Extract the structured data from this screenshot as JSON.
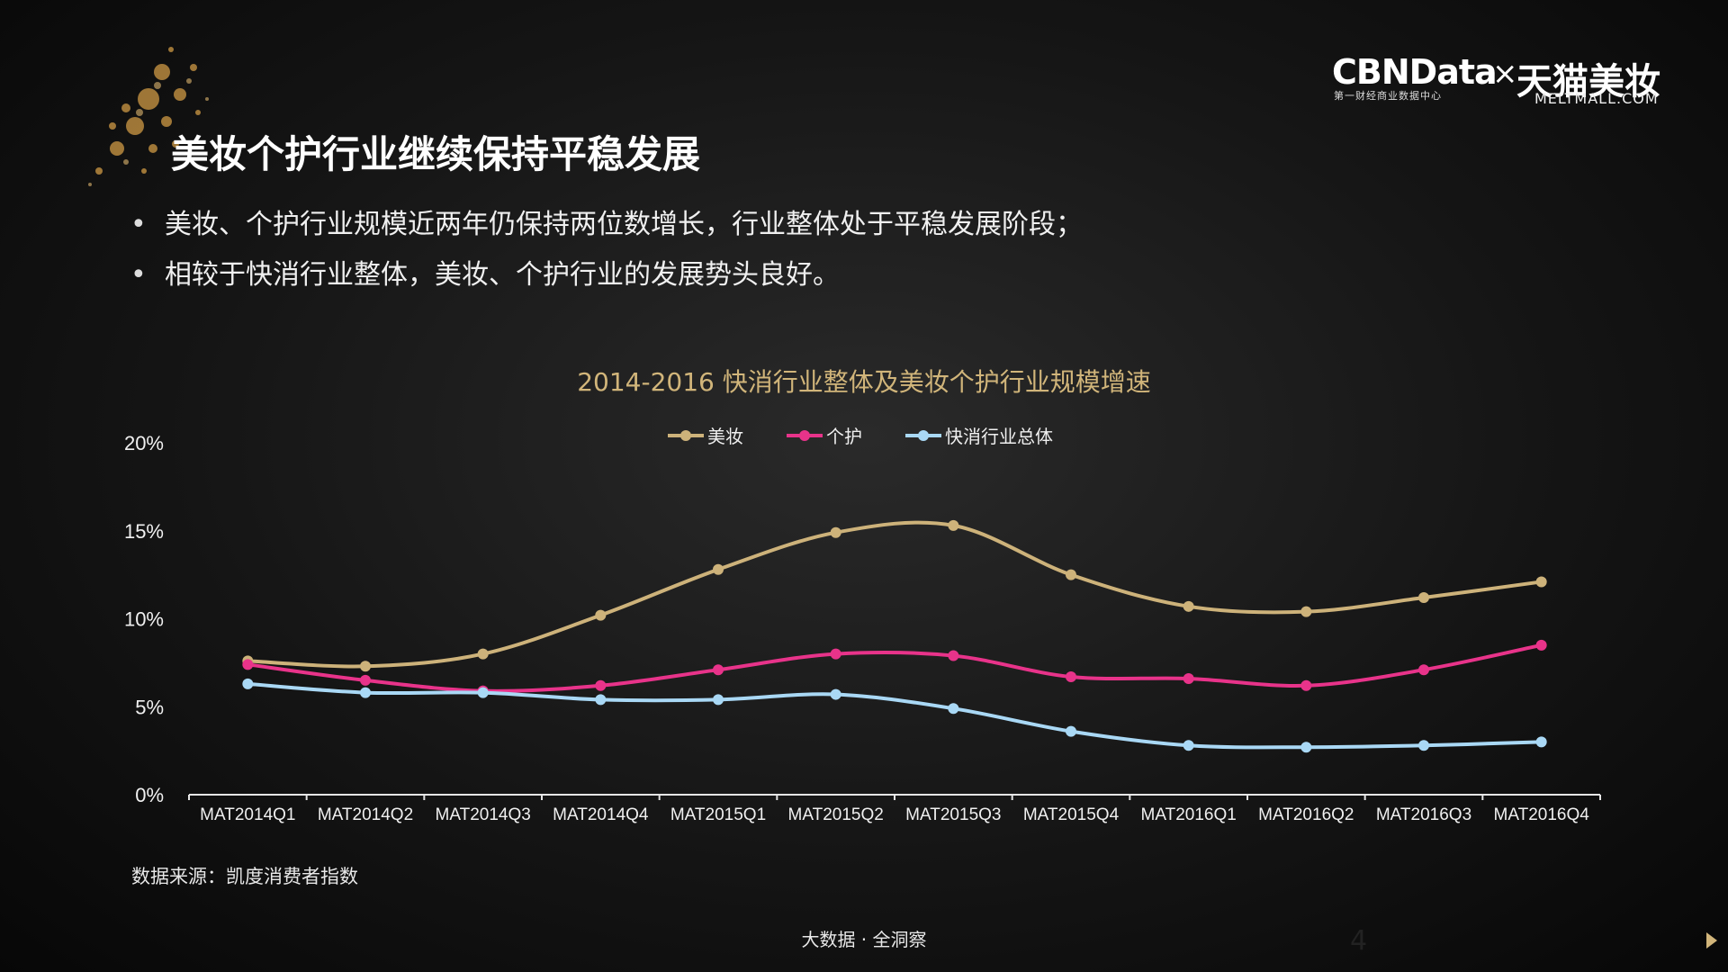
{
  "logo": {
    "cbn": "CBNData",
    "cbn_sub": "第一财经商业数据中心",
    "x": "×",
    "tmall": "天猫美妆",
    "tmall_sub": "MELTMALL.COM"
  },
  "title": "美妆个护行业继续保持平稳发展",
  "bullets": [
    "美妆、个护行业规模近两年仍保持两位数增长，行业整体处于平稳发展阶段；",
    "相较于快消行业整体，美妆、个护行业的发展势头良好。"
  ],
  "source": "数据来源：凯度消费者指数",
  "footer": "大数据 · 全洞察",
  "page_number": "4",
  "chart_data": {
    "type": "line",
    "title": "2014-2016 快消行业整体及美妆个护行业规模增速",
    "categories": [
      "MAT2014Q1",
      "MAT2014Q2",
      "MAT2014Q3",
      "MAT2014Q4",
      "MAT2015Q1",
      "MAT2015Q2",
      "MAT2015Q3",
      "MAT2015Q4",
      "MAT2016Q1",
      "MAT2016Q2",
      "MAT2016Q3",
      "MAT2016Q4"
    ],
    "ylim": [
      0,
      20
    ],
    "yticks": [
      "0%",
      "5%",
      "10%",
      "15%",
      "20%"
    ],
    "grid": false,
    "legend": "top-center",
    "series": [
      {
        "name": "美妆",
        "color": "#cdb27a",
        "values": [
          7.6,
          7.3,
          8.0,
          10.2,
          12.8,
          14.9,
          15.3,
          12.5,
          10.7,
          10.4,
          11.2,
          12.1
        ]
      },
      {
        "name": "个护",
        "color": "#e8338a",
        "values": [
          7.4,
          6.5,
          5.9,
          6.2,
          7.1,
          8.0,
          7.9,
          6.7,
          6.6,
          6.2,
          7.1,
          8.5
        ]
      },
      {
        "name": "快消行业总体",
        "color": "#a9d8f5",
        "values": [
          6.3,
          5.8,
          5.8,
          5.4,
          5.4,
          5.7,
          4.9,
          3.6,
          2.8,
          2.7,
          2.8,
          3.0
        ]
      }
    ]
  }
}
